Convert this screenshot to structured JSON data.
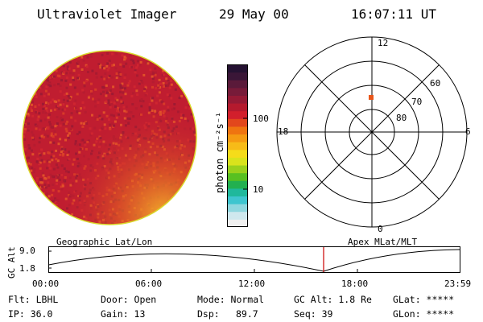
{
  "header": {
    "title": "Ultraviolet Imager",
    "date": "29 May 00",
    "time": "16:07:11 UT"
  },
  "colorbar": {
    "axis_label": "photon cm⁻²s⁻¹",
    "ticks": [
      "100",
      "10"
    ],
    "colors": [
      "#f0f0f0",
      "#cfe8ee",
      "#8fd7df",
      "#3ec5cf",
      "#1fb89c",
      "#22b050",
      "#58c021",
      "#9ad11c",
      "#d9e31c",
      "#f5dc1a",
      "#f7bb18",
      "#f59a12",
      "#ef7410",
      "#e2471c",
      "#d21f2c",
      "#b51a2e",
      "#951a35",
      "#771b39",
      "#5a1a3a",
      "#3a1637",
      "#251232"
    ]
  },
  "polar": {
    "labels": [
      "12",
      "18",
      "6",
      "0",
      "80",
      "70",
      "60"
    ],
    "point_color": "#e8561a"
  },
  "timeline": {
    "left_title": "Geographic Lat/Lon",
    "right_title": "Apex MLat/MLT",
    "axis_label": "GC Alt",
    "y_ticks": [
      "9.0",
      "1.8"
    ],
    "x_ticks": [
      "00:00",
      "06:00",
      "12:00",
      "18:00",
      "23:59"
    ],
    "marker_color": "#cc0000"
  },
  "footer": {
    "flt": "Flt: LBHL",
    "ip": "IP: 36.0",
    "door": "Door: Open",
    "gain": "Gain: 13",
    "mode": "Mode: Normal",
    "dsp_label": "Dsp:",
    "dsp_value": "89.7",
    "gcalt": "GC Alt: 1.8 Re",
    "seq": "Seq: 39",
    "glat": "GLat: *****",
    "glon": "GLon: *****"
  }
}
